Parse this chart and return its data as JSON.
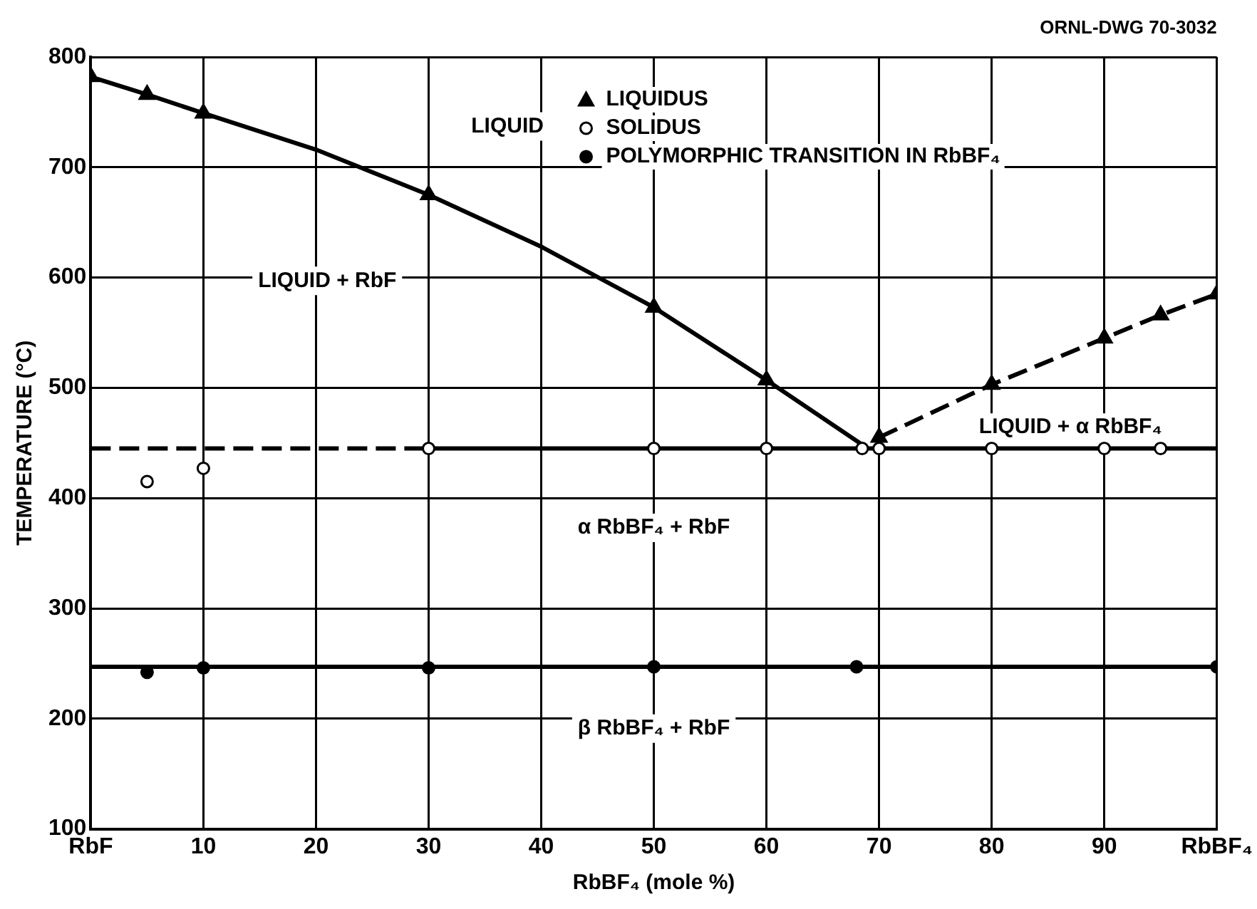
{
  "chart_data": {
    "type": "scatter",
    "xlabel": "RbBF₄ (mole %)",
    "ylabel": "TEMPERATURE (°C)",
    "xlim": [
      0,
      100
    ],
    "xticks": [
      {
        "value": 0,
        "label": "RbF"
      },
      10,
      20,
      30,
      40,
      50,
      60,
      70,
      80,
      90,
      {
        "value": 100,
        "label": "RbBF₄"
      }
    ],
    "ylim": [
      100,
      800
    ],
    "yticks": [
      100,
      200,
      300,
      400,
      500,
      600,
      700,
      800
    ],
    "grid": true,
    "legend": "top right",
    "series": [
      {
        "type": "line",
        "color": "#000000",
        "marker": "none",
        "line_style": "solid",
        "x": [
          0,
          5,
          10,
          20,
          30,
          40,
          50,
          60,
          69
        ],
        "values": [
          782,
          766,
          749,
          716,
          675,
          628,
          573,
          507,
          445
        ]
      },
      {
        "type": "line",
        "color": "#000000",
        "marker": "none",
        "line_style": "dashed",
        "x": [
          70,
          80,
          90,
          95,
          100
        ],
        "values": [
          455,
          503,
          545,
          566,
          585
        ]
      },
      {
        "type": "line",
        "color": "#000000",
        "marker": "none",
        "line_style": "dashed",
        "x": [
          0,
          30
        ],
        "values": [
          445,
          445
        ]
      },
      {
        "type": "line",
        "color": "#000000",
        "marker": "none",
        "line_style": "solid",
        "x": [
          30,
          100
        ],
        "values": [
          445,
          445
        ]
      },
      {
        "type": "line",
        "color": "#000000",
        "marker": "none",
        "line_style": "solid",
        "x": [
          0,
          100
        ],
        "values": [
          247,
          247
        ]
      },
      {
        "name": "LIQUIDUS",
        "type": "scatter",
        "color": "#000000",
        "marker": "triangle",
        "x": [
          0,
          5,
          10,
          30,
          50,
          60,
          70,
          80,
          90,
          95,
          100
        ],
        "values": [
          782,
          766,
          749,
          675,
          573,
          507,
          455,
          503,
          545,
          566,
          585
        ]
      },
      {
        "name": "SOLIDUS",
        "type": "scatter",
        "color": "#000000",
        "marker": "circle-open",
        "x": [
          5,
          10,
          30,
          50,
          60,
          68.5,
          70,
          80,
          90,
          95
        ],
        "values": [
          415,
          427,
          445,
          445,
          445,
          445,
          445,
          445,
          445,
          445
        ]
      },
      {
        "name": "POLYMORPHIC TRANSITION IN RbBF₄",
        "type": "scatter",
        "color": "#000000",
        "marker": "circle",
        "x": [
          5,
          10,
          30,
          50,
          68,
          100
        ],
        "values": [
          242,
          246,
          246,
          247,
          247,
          247
        ]
      }
    ],
    "annotations": [
      "ORNL-DWG 70-3032",
      "LIQUID",
      "LIQUID + RbF",
      "LIQUID + α RbBF₄",
      "α RbBF₄ + RbF",
      "β RbBF₄ + RbF"
    ]
  }
}
